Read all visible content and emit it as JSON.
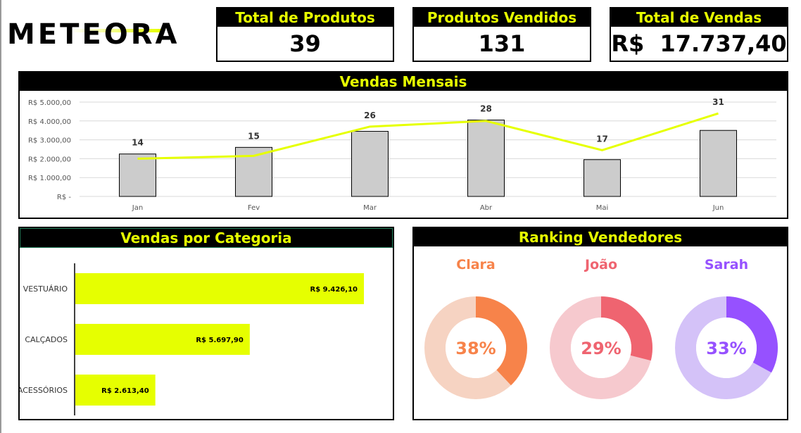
{
  "logo": {
    "text": "METEORA",
    "accent_color": "#e6ff00"
  },
  "kpis": [
    {
      "title": "Total de Produtos",
      "value": "39"
    },
    {
      "title": "Produtos Vendidos",
      "value": "131"
    },
    {
      "title": "Total de Vendas",
      "value": "R$  17.737,40"
    }
  ],
  "monthly": {
    "title": "Vendas Mensais",
    "y_ticks": [
      "R$ -",
      "R$ 1.000,00",
      "R$ 2.000,00",
      "R$ 3.000,00",
      "R$ 4.000,00",
      "R$ 5.000,00"
    ]
  },
  "category": {
    "title": "Vendas por Categoria"
  },
  "ranking": {
    "title": "Ranking Vendedores"
  },
  "chart_data": [
    {
      "type": "bar",
      "title": "Vendas Mensais",
      "categories": [
        "Jan",
        "Fev",
        "Mar",
        "Abr",
        "Mai",
        "Jun"
      ],
      "series": [
        {
          "values": [
            2250,
            2600,
            3450,
            4050,
            1950,
            3500
          ],
          "color": "#cccccc"
        },
        {
          "values": [
            2000,
            2150,
            3700,
            4000,
            2450,
            4400
          ],
          "color": "#e6ff00",
          "line": true,
          "data_labels": [
            14,
            15,
            26,
            28,
            17,
            31
          ]
        }
      ],
      "ylim": [
        0,
        5000
      ],
      "grid": true
    },
    {
      "type": "bar",
      "orientation": "horizontal",
      "title": "Vendas por Categoria",
      "categories": [
        "VESTUÁRIO",
        "CALÇADOS",
        "ACESSÓRIOS"
      ],
      "values": [
        9426.1,
        5697.9,
        2613.4
      ],
      "value_labels": [
        "R$ 9.426,10",
        "R$ 5.697,90",
        "R$ 2.613,40"
      ],
      "color": "#e6ff00",
      "xlim": [
        0,
        10000
      ]
    },
    {
      "type": "pie",
      "title": "Ranking Vendedores",
      "donuts": [
        {
          "name": "Clara",
          "percent": 38,
          "label": "38%",
          "color": "#f7834a",
          "track": "#f6d3c2"
        },
        {
          "name": "João",
          "percent": 29,
          "label": "29%",
          "color": "#ef6470",
          "track": "#f6c9ce"
        },
        {
          "name": "Sarah",
          "percent": 33,
          "label": "33%",
          "color": "#9651ff",
          "track": "#d4c2f8"
        }
      ]
    }
  ]
}
